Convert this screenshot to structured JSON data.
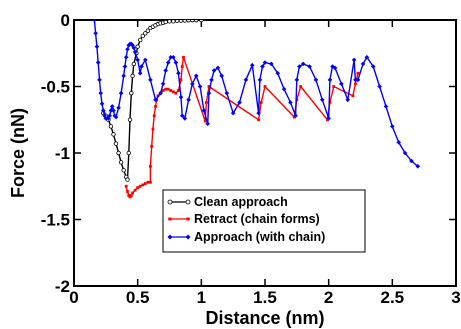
{
  "chart_data": {
    "type": "line",
    "title": "",
    "xlabel": "Distance (nm)",
    "ylabel": "Force (nN)",
    "xlim": [
      0,
      3
    ],
    "ylim": [
      -2,
      0
    ],
    "xticks": [
      0,
      0.5,
      1,
      1.5,
      2,
      2.5,
      3
    ],
    "xtick_labels": [
      "0",
      "0.5",
      "1",
      "1.5",
      "2",
      "2.5",
      "3"
    ],
    "yticks": [
      0,
      -0.5,
      -1,
      -1.5,
      -2
    ],
    "ytick_labels": [
      "0",
      "-0.5",
      "-1",
      "-1.5",
      "-2"
    ],
    "grid": false,
    "legend_position": "bottom-right",
    "series": [
      {
        "name": "Clean approach",
        "color": "#000000",
        "marker": "open-circle",
        "x": [
          0.23,
          0.25,
          0.27,
          0.29,
          0.31,
          0.33,
          0.35,
          0.37,
          0.39,
          0.41,
          0.42,
          0.43,
          0.44,
          0.45,
          0.46,
          0.47,
          0.49,
          0.5,
          0.52,
          0.54,
          0.56,
          0.58,
          0.6,
          0.62,
          0.64,
          0.66,
          0.68,
          0.7,
          0.72,
          0.75,
          0.78,
          0.81,
          0.84,
          0.87,
          0.9,
          0.93,
          0.96,
          1.0
        ],
        "y": [
          -0.7,
          -0.72,
          -0.75,
          -0.8,
          -0.86,
          -0.93,
          -1.0,
          -1.07,
          -1.13,
          -1.18,
          -1.2,
          -1.0,
          -0.75,
          -0.55,
          -0.42,
          -0.33,
          -0.25,
          -0.2,
          -0.15,
          -0.12,
          -0.1,
          -0.08,
          -0.06,
          -0.05,
          -0.04,
          -0.03,
          -0.025,
          -0.02,
          -0.015,
          -0.01,
          -0.01,
          -0.005,
          -0.005,
          -0.003,
          -0.002,
          -0.001,
          -0.001,
          0.0
        ]
      },
      {
        "name": "Retract (chain forms)",
        "color": "#ff0000",
        "marker": "dot",
        "x": [
          0.41,
          0.42,
          0.43,
          0.44,
          0.45,
          0.46,
          0.48,
          0.5,
          0.52,
          0.54,
          0.56,
          0.58,
          0.6,
          0.6,
          0.61,
          0.62,
          0.63,
          0.64,
          0.65,
          0.66,
          0.68,
          0.7,
          0.72,
          0.74,
          0.76,
          0.78,
          0.8,
          0.82,
          0.84,
          0.85,
          0.86,
          1.03,
          1.04,
          1.06,
          1.45,
          1.47,
          1.5,
          1.73,
          1.75,
          1.78,
          1.99,
          2.01,
          2.04,
          2.19,
          2.21,
          2.23
        ],
        "y": [
          -1.25,
          -1.29,
          -1.32,
          -1.33,
          -1.32,
          -1.3,
          -1.28,
          -1.26,
          -1.25,
          -1.24,
          -1.23,
          -1.22,
          -1.22,
          -1.1,
          -0.95,
          -0.82,
          -0.72,
          -0.65,
          -0.6,
          -0.57,
          -0.55,
          -0.53,
          -0.52,
          -0.52,
          -0.53,
          -0.54,
          -0.55,
          -0.53,
          -0.45,
          -0.35,
          -0.28,
          -0.76,
          -0.62,
          -0.5,
          -0.75,
          -0.62,
          -0.5,
          -0.73,
          -0.6,
          -0.5,
          -0.75,
          -0.62,
          -0.5,
          -0.57,
          -0.48,
          -0.4
        ]
      },
      {
        "name": "Approach (with chain)",
        "color": "#0000ff",
        "marker": "diamond",
        "x": [
          0.16,
          0.17,
          0.18,
          0.19,
          0.2,
          0.21,
          0.22,
          0.23,
          0.24,
          0.25,
          0.27,
          0.28,
          0.29,
          0.3,
          0.31,
          0.32,
          0.33,
          0.35,
          0.37,
          0.39,
          0.4,
          0.41,
          0.42,
          0.43,
          0.44,
          0.45,
          0.46,
          0.47,
          0.48,
          0.5,
          0.52,
          0.53,
          0.56,
          0.6,
          0.64,
          0.68,
          0.7,
          0.72,
          0.74,
          0.76,
          0.78,
          0.8,
          0.82,
          0.84,
          0.85,
          0.87,
          0.9,
          0.93,
          0.96,
          0.99,
          1.02,
          1.05,
          1.06,
          1.08,
          1.1,
          1.13,
          1.16,
          1.2,
          1.25,
          1.3,
          1.35,
          1.4,
          1.45,
          1.46,
          1.48,
          1.5,
          1.55,
          1.6,
          1.65,
          1.7,
          1.74,
          1.75,
          1.77,
          1.8,
          1.85,
          1.9,
          1.95,
          2.0,
          2.01,
          2.03,
          2.05,
          2.1,
          2.15,
          2.2,
          2.21,
          2.23,
          2.27,
          2.3,
          2.35,
          2.4,
          2.45,
          2.5,
          2.55,
          2.6,
          2.65,
          2.7
        ],
        "y": [
          0.0,
          -0.1,
          -0.2,
          -0.32,
          -0.45,
          -0.55,
          -0.63,
          -0.68,
          -0.72,
          -0.74,
          -0.74,
          -0.72,
          -0.68,
          -0.65,
          -0.68,
          -0.72,
          -0.73,
          -0.66,
          -0.55,
          -0.42,
          -0.35,
          -0.28,
          -0.22,
          -0.19,
          -0.18,
          -0.18,
          -0.19,
          -0.21,
          -0.24,
          -0.3,
          -0.4,
          -0.35,
          -0.3,
          -0.45,
          -0.6,
          -0.55,
          -0.48,
          -0.38,
          -0.32,
          -0.28,
          -0.28,
          -0.32,
          -0.4,
          -0.58,
          -0.72,
          -0.74,
          -0.6,
          -0.48,
          -0.42,
          -0.5,
          -0.68,
          -0.78,
          -0.55,
          -0.45,
          -0.38,
          -0.36,
          -0.42,
          -0.55,
          -0.7,
          -0.62,
          -0.45,
          -0.34,
          -0.7,
          -0.45,
          -0.35,
          -0.32,
          -0.33,
          -0.4,
          -0.52,
          -0.62,
          -0.72,
          -0.45,
          -0.35,
          -0.33,
          -0.35,
          -0.45,
          -0.6,
          -0.74,
          -0.45,
          -0.35,
          -0.36,
          -0.48,
          -0.6,
          -0.3,
          -0.45,
          -0.45,
          -0.33,
          -0.28,
          -0.35,
          -0.5,
          -0.65,
          -0.8,
          -0.92,
          -1.0,
          -1.06,
          -1.1
        ]
      }
    ]
  }
}
